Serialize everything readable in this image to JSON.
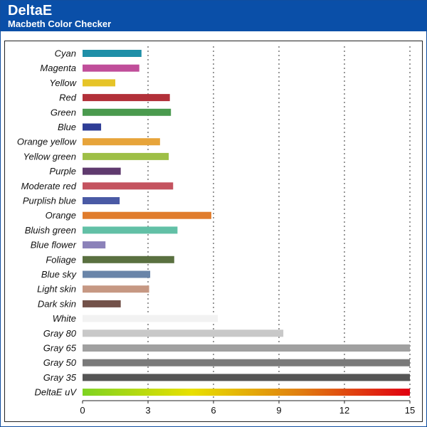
{
  "header": {
    "title": "DeltaE",
    "subtitle": "Macbeth Color Checker"
  },
  "chart_data": {
    "type": "bar",
    "orientation": "horizontal",
    "title": "DeltaE",
    "subtitle": "Macbeth Color Checker",
    "xlabel": "",
    "ylabel": "",
    "xlim": [
      0,
      15
    ],
    "xticks": [
      0,
      3,
      6,
      9,
      12,
      15
    ],
    "grid": "vertical dotted",
    "legend": "none",
    "categories": [
      "Cyan",
      "Magenta",
      "Yellow",
      "Red",
      "Green",
      "Blue",
      "Orange yellow",
      "Yellow green",
      "Purple",
      "Moderate red",
      "Purplish blue",
      "Orange",
      "Bluish green",
      "Blue flower",
      "Foliage",
      "Blue sky",
      "Light skin",
      "Dark skin",
      "White",
      "Gray 80",
      "Gray 65",
      "Gray 50",
      "Gray 35",
      "DeltaE uV"
    ],
    "values": [
      2.7,
      2.6,
      1.5,
      4.0,
      4.05,
      0.85,
      3.55,
      3.95,
      1.75,
      4.15,
      1.7,
      5.9,
      4.35,
      1.05,
      4.2,
      3.1,
      3.05,
      1.75,
      6.2,
      9.2,
      15,
      15,
      15,
      15
    ],
    "colors": [
      "#1f8fa8",
      "#c04e9a",
      "#e6c428",
      "#b23039",
      "#4a9a4e",
      "#2e3d96",
      "#e7a43a",
      "#9ebf46",
      "#5f3a6e",
      "#c4535f",
      "#4a5aa5",
      "#e07c2c",
      "#62c0a6",
      "#8b82b9",
      "#5a7040",
      "#6a85a9",
      "#c69883",
      "#73524a",
      "#f2f2f2",
      "#c8c8c8",
      "#a0a0a0",
      "#7a7a7a",
      "#555555",
      "gradient"
    ],
    "gradient_colors": [
      "#7ed321",
      "#e8e000",
      "#e07d10",
      "#e00010"
    ]
  }
}
